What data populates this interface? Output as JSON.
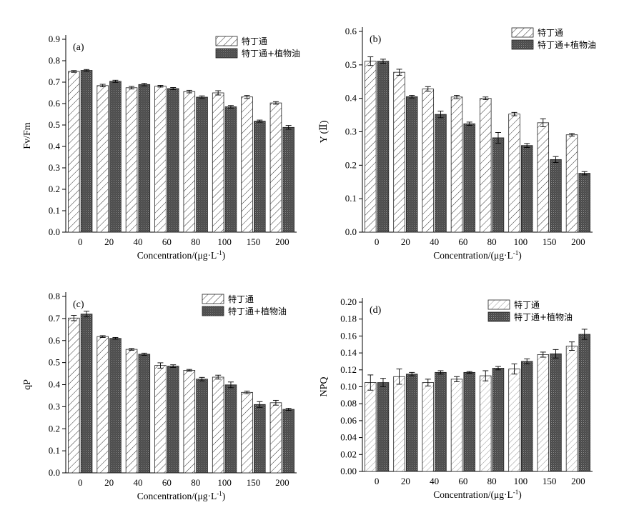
{
  "chart_data": [
    {
      "panel_label": "(a)",
      "type": "bar",
      "ylabel": "Fv/Fm",
      "xlabel": "Concentration/(μg·L",
      "xlabel_sup": "-1",
      "xlabel_end": ")",
      "categories": [
        "0",
        "20",
        "40",
        "60",
        "80",
        "100",
        "150",
        "200"
      ],
      "ylim": [
        0,
        0.9
      ],
      "yticks": [
        "0.0",
        "0.1",
        "0.2",
        "0.3",
        "0.4",
        "0.5",
        "0.6",
        "0.7",
        "0.8",
        "0.9"
      ],
      "series": [
        {
          "name": "特丁通",
          "pattern": "hatch",
          "values": [
            0.75,
            0.684,
            0.674,
            0.681,
            0.656,
            0.65,
            0.631,
            0.603
          ],
          "errors": [
            0.004,
            0.006,
            0.006,
            0.004,
            0.006,
            0.01,
            0.007,
            0.006
          ]
        },
        {
          "name": "特丁通+植物油",
          "pattern": "dark",
          "values": [
            0.755,
            0.704,
            0.689,
            0.67,
            0.63,
            0.585,
            0.518,
            0.489
          ],
          "errors": [
            0.004,
            0.005,
            0.006,
            0.005,
            0.006,
            0.006,
            0.005,
            0.009
          ]
        }
      ]
    },
    {
      "panel_label": "(b)",
      "type": "bar",
      "ylabel": "Y (Ⅱ)",
      "xlabel": "Concentration/(μg·L",
      "xlabel_sup": "-1",
      "xlabel_end": ")",
      "categories": [
        "0",
        "20",
        "40",
        "60",
        "80",
        "100",
        "150",
        "200"
      ],
      "ylim": [
        0,
        0.6
      ],
      "yticks": [
        "0.0",
        "0.1",
        "0.2",
        "0.3",
        "0.4",
        "0.5",
        "0.6"
      ],
      "series": [
        {
          "name": "特丁通",
          "pattern": "hatch",
          "values": [
            0.511,
            0.478,
            0.428,
            0.404,
            0.4,
            0.353,
            0.327,
            0.291
          ],
          "errors": [
            0.013,
            0.009,
            0.007,
            0.005,
            0.004,
            0.005,
            0.012,
            0.004
          ]
        },
        {
          "name": "特丁通+植物油",
          "pattern": "dark",
          "values": [
            0.511,
            0.405,
            0.352,
            0.324,
            0.282,
            0.259,
            0.217,
            0.176
          ],
          "errors": [
            0.006,
            0.004,
            0.01,
            0.005,
            0.016,
            0.006,
            0.009,
            0.005
          ]
        }
      ]
    },
    {
      "panel_label": "(c)",
      "type": "bar",
      "ylabel": "qP",
      "xlabel": "Concentration/(μg·L",
      "xlabel_sup": "-1",
      "xlabel_end": ")",
      "categories": [
        "0",
        "20",
        "40",
        "60",
        "80",
        "100",
        "150",
        "200"
      ],
      "ylim": [
        0,
        0.8
      ],
      "yticks": [
        "0.0",
        "0.1",
        "0.2",
        "0.3",
        "0.4",
        "0.5",
        "0.6",
        "0.7",
        "0.8"
      ],
      "series": [
        {
          "name": "特丁通",
          "pattern": "hatch",
          "values": [
            0.702,
            0.618,
            0.56,
            0.487,
            0.465,
            0.434,
            0.365,
            0.318
          ],
          "errors": [
            0.012,
            0.004,
            0.004,
            0.012,
            0.004,
            0.009,
            0.006,
            0.011
          ]
        },
        {
          "name": "特丁通+植物油",
          "pattern": "dark",
          "values": [
            0.72,
            0.61,
            0.538,
            0.484,
            0.425,
            0.399,
            0.31,
            0.288
          ],
          "errors": [
            0.013,
            0.004,
            0.005,
            0.006,
            0.008,
            0.013,
            0.013,
            0.005
          ]
        }
      ]
    },
    {
      "panel_label": "(d)",
      "type": "bar",
      "ylabel": "NPQ",
      "xlabel": "Concentration/(μg·L",
      "xlabel_sup": "-1",
      "xlabel_end": ")",
      "categories": [
        "0",
        "20",
        "40",
        "60",
        "80",
        "100",
        "150",
        "200"
      ],
      "ylim": [
        0,
        0.2
      ],
      "yticks": [
        "0.00",
        "0.02",
        "0.04",
        "0.06",
        "0.08",
        "0.10",
        "0.12",
        "0.14",
        "0.16",
        "0.18",
        "0.20"
      ],
      "series": [
        {
          "name": "特丁通",
          "pattern": "light",
          "values": [
            0.105,
            0.112,
            0.105,
            0.109,
            0.113,
            0.121,
            0.138,
            0.148
          ],
          "errors": [
            0.009,
            0.009,
            0.004,
            0.003,
            0.006,
            0.006,
            0.003,
            0.005
          ]
        },
        {
          "name": "特丁通+植物油",
          "pattern": "dark",
          "values": [
            0.105,
            0.115,
            0.117,
            0.117,
            0.122,
            0.13,
            0.139,
            0.162
          ],
          "errors": [
            0.005,
            0.002,
            0.002,
            0.001,
            0.002,
            0.003,
            0.005,
            0.006
          ]
        }
      ]
    }
  ]
}
